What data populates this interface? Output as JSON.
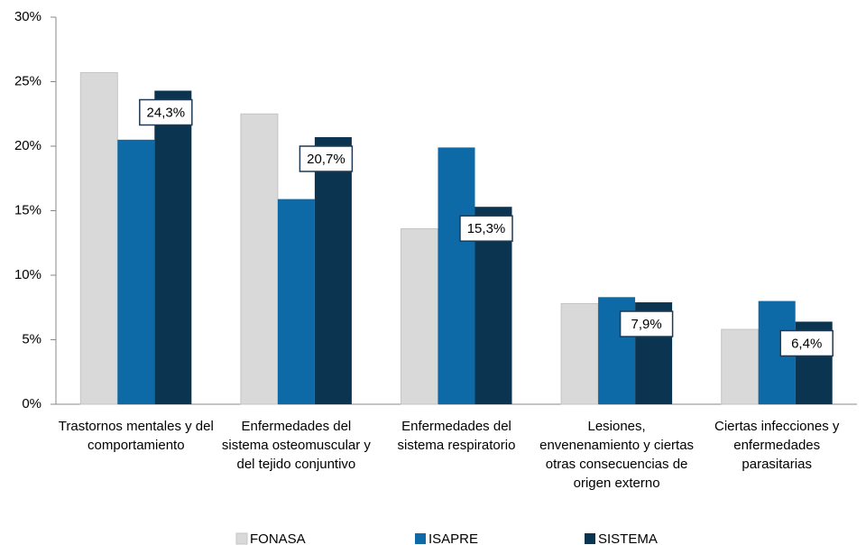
{
  "chart_data": {
    "type": "bar",
    "categories": [
      "Trastornos mentales y del comportamiento",
      "Enfermedades del sistema osteomuscular y del tejido conjuntivo",
      "Enfermedades del sistema respiratorio",
      "Lesiones, envenenamiento y ciertas otras consecuencias de origen externo",
      "Ciertas infecciones y enfermedades parasitarias"
    ],
    "series": [
      {
        "name": "FONASA",
        "color": "#d9d9d9",
        "values": [
          25.7,
          22.5,
          13.6,
          7.8,
          5.8
        ]
      },
      {
        "name": "ISAPRE",
        "color": "#0e6aa6",
        "values": [
          20.5,
          15.9,
          19.9,
          8.3,
          8.0
        ]
      },
      {
        "name": "SISTEMA",
        "color": "#0b3450",
        "values": [
          24.3,
          20.7,
          15.3,
          7.9,
          6.4
        ],
        "value_labels": [
          "24,3%",
          "20,7%",
          "15,3%",
          "7,9%",
          "6,4%"
        ]
      }
    ],
    "ylim": [
      0,
      30
    ],
    "yticks": [
      {
        "value": 0,
        "label": "0%"
      },
      {
        "value": 5,
        "label": "5%"
      },
      {
        "value": 10,
        "label": "10%"
      },
      {
        "value": 15,
        "label": "15%"
      },
      {
        "value": 20,
        "label": "20%"
      },
      {
        "value": 25,
        "label": "25%"
      },
      {
        "value": 30,
        "label": "30%"
      }
    ],
    "grid": false,
    "legend": "bottom"
  }
}
